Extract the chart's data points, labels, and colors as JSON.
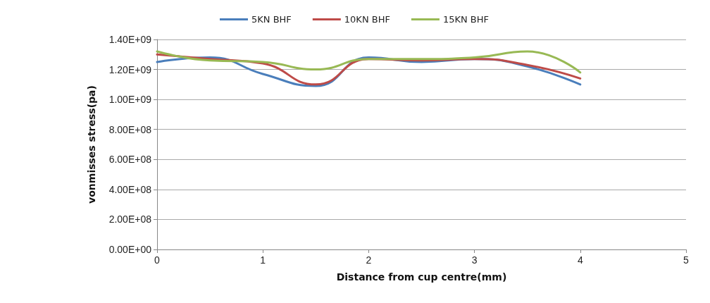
{
  "chart_data": {
    "type": "line",
    "xlabel": "Distance from cup centre(mm)",
    "ylabel": "vonmisses stress(pa)",
    "x": [
      0,
      0.5,
      1,
      1.5,
      2,
      2.5,
      3,
      3.5,
      4
    ],
    "series": [
      {
        "name": "5KN BHF",
        "color": "#4a7ebb",
        "values": [
          1250000000.0,
          1280000000.0,
          1170000000.0,
          1090000000.0,
          1280000000.0,
          1250000000.0,
          1270000000.0,
          1220000000.0,
          1100000000.0
        ]
      },
      {
        "name": "10KN BHF",
        "color": "#be4b48",
        "values": [
          1300000000.0,
          1270000000.0,
          1240000000.0,
          1100000000.0,
          1270000000.0,
          1260000000.0,
          1270000000.0,
          1230000000.0,
          1140000000.0
        ]
      },
      {
        "name": "15KN BHF",
        "color": "#98b954",
        "values": [
          1320000000.0,
          1260000000.0,
          1250000000.0,
          1200000000.0,
          1270000000.0,
          1270000000.0,
          1280000000.0,
          1320000000.0,
          1180000000.0
        ]
      }
    ],
    "xlim": [
      0,
      5
    ],
    "xticks": [
      0,
      1,
      2,
      3,
      4,
      5
    ],
    "ylim": [
      0,
      1400000000.0
    ],
    "yticks": [
      {
        "value": 0,
        "label": "0.00E+00"
      },
      {
        "value": 200000000.0,
        "label": "2.00E+08"
      },
      {
        "value": 400000000.0,
        "label": "4.00E+08"
      },
      {
        "value": 600000000.0,
        "label": "6.00E+08"
      },
      {
        "value": 800000000.0,
        "label": "8.00E+08"
      },
      {
        "value": 1000000000.0,
        "label": "1.00E+09"
      },
      {
        "value": 1200000000.0,
        "label": "1.20E+09"
      },
      {
        "value": 1400000000.0,
        "label": "1.40E+09"
      }
    ],
    "grid": "y",
    "legend": "top",
    "marker": "none",
    "line_style": "solid"
  }
}
